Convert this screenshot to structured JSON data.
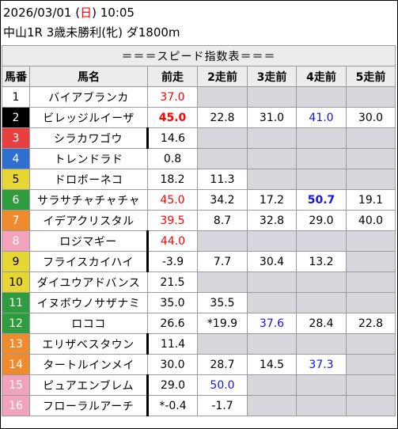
{
  "header": {
    "date": "2026/03/01",
    "weekday": "日",
    "time": "10:05",
    "race": "中山1R 3歳未勝利(牝) ダ1800m"
  },
  "table": {
    "title": "＝＝＝スピード指数表＝＝＝",
    "columns": [
      "馬番",
      "馬名",
      "前走",
      "2走前",
      "3走前",
      "4走前",
      "5走前"
    ],
    "rows": [
      {
        "num": "1",
        "name": "バイアブランカ",
        "marked": false,
        "values": [
          {
            "v": "37.0",
            "c": "red"
          },
          null,
          null,
          null,
          null
        ]
      },
      {
        "num": "2",
        "name": "ビレッジルイーザ",
        "marked": false,
        "values": [
          {
            "v": "45.0",
            "c": "red",
            "b": true
          },
          {
            "v": "22.8"
          },
          {
            "v": "31.0"
          },
          {
            "v": "41.0",
            "c": "blue"
          },
          {
            "v": "30.0"
          }
        ]
      },
      {
        "num": "3",
        "name": "シラカワゴウ",
        "marked": true,
        "values": [
          {
            "v": "14.6"
          },
          null,
          null,
          null,
          null
        ]
      },
      {
        "num": "4",
        "name": "トレンドラド",
        "marked": false,
        "values": [
          {
            "v": "0.8"
          },
          null,
          null,
          null,
          null
        ]
      },
      {
        "num": "5",
        "name": "ドロボーネコ",
        "marked": false,
        "values": [
          {
            "v": "18.2"
          },
          {
            "v": "11.3"
          },
          null,
          null,
          null
        ]
      },
      {
        "num": "6",
        "name": "サラサチャチャチャ",
        "marked": false,
        "values": [
          {
            "v": "45.0",
            "c": "red"
          },
          {
            "v": "34.2"
          },
          {
            "v": "17.2"
          },
          {
            "v": "50.7",
            "c": "blue",
            "b": true
          },
          {
            "v": "19.1"
          }
        ]
      },
      {
        "num": "7",
        "name": "イデアクリスタル",
        "marked": false,
        "values": [
          {
            "v": "39.5",
            "c": "red"
          },
          {
            "v": "8.7"
          },
          {
            "v": "32.8"
          },
          {
            "v": "29.0"
          },
          {
            "v": "40.0"
          }
        ]
      },
      {
        "num": "8",
        "name": "ロジマギー",
        "marked": true,
        "values": [
          {
            "v": "44.0",
            "c": "red"
          },
          null,
          null,
          null,
          null
        ]
      },
      {
        "num": "9",
        "name": "フライスカイハイ",
        "marked": true,
        "values": [
          {
            "v": "-3.9"
          },
          {
            "v": "7.7"
          },
          {
            "v": "30.4"
          },
          {
            "v": "13.2"
          },
          null
        ]
      },
      {
        "num": "10",
        "name": "ダイユウアドバンス",
        "marked": false,
        "values": [
          {
            "v": "21.5"
          },
          null,
          null,
          null,
          null
        ]
      },
      {
        "num": "11",
        "name": "イヌボウノサザナミ",
        "marked": false,
        "values": [
          {
            "v": "35.0"
          },
          {
            "v": "35.5"
          },
          null,
          null,
          null
        ]
      },
      {
        "num": "12",
        "name": "ロココ",
        "marked": false,
        "values": [
          {
            "v": "26.6"
          },
          {
            "v": "*19.9"
          },
          {
            "v": "37.6",
            "c": "blue"
          },
          {
            "v": "28.4"
          },
          {
            "v": "22.8"
          }
        ]
      },
      {
        "num": "13",
        "name": "エリザベスタウン",
        "marked": true,
        "values": [
          {
            "v": "11.4"
          },
          null,
          null,
          null,
          null
        ]
      },
      {
        "num": "14",
        "name": "タートルインメイ",
        "marked": false,
        "values": [
          {
            "v": "30.0"
          },
          {
            "v": "28.7"
          },
          {
            "v": "14.5"
          },
          {
            "v": "37.3",
            "c": "blue"
          },
          null
        ]
      },
      {
        "num": "15",
        "name": "ピュアエンブレム",
        "marked": true,
        "values": [
          {
            "v": "29.0"
          },
          {
            "v": "50.0",
            "c": "blue"
          },
          null,
          null,
          null
        ]
      },
      {
        "num": "16",
        "name": "フローラルアーチ",
        "marked": true,
        "values": [
          {
            "v": "*-0.4"
          },
          {
            "v": "-1.7"
          },
          null,
          null,
          null
        ]
      }
    ]
  },
  "colors": {
    "frame_colors": [
      {
        "bg": "#ffffff",
        "fg": "#000000"
      },
      {
        "bg": "#000000",
        "fg": "#ffffff"
      },
      {
        "bg": "#e8403f",
        "fg": "#ffffff"
      },
      {
        "bg": "#2f6fcf",
        "fg": "#ffffff"
      },
      {
        "bg": "#e5d634",
        "fg": "#000000"
      },
      {
        "bg": "#2e9c3f",
        "fg": "#ffffff"
      },
      {
        "bg": "#ef8a2d",
        "fg": "#ffffff"
      },
      {
        "bg": "#f2a3bb",
        "fg": "#ffffff"
      }
    ],
    "red": "#ff0000",
    "blue": "#1414e6",
    "empty_cell": "#d6d7dc",
    "header_bg": "#ececec"
  }
}
